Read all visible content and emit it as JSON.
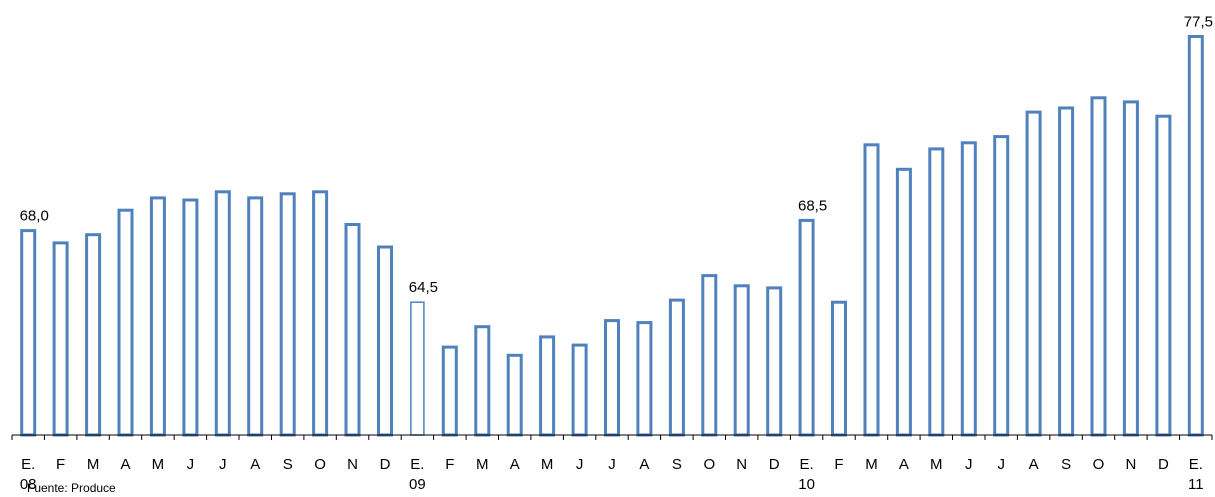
{
  "chart_data": {
    "type": "bar",
    "categories": [
      "E.",
      "F",
      "M",
      "A",
      "M",
      "J",
      "J",
      "A",
      "S",
      "O",
      "N",
      "D",
      "E.",
      "F",
      "M",
      "A",
      "M",
      "J",
      "J",
      "A",
      "S",
      "O",
      "N",
      "D",
      "E.",
      "F",
      "M",
      "A",
      "M",
      "J",
      "J",
      "A",
      "S",
      "O",
      "N",
      "D",
      "E."
    ],
    "year_labels": [
      {
        "index": 0,
        "text": "08"
      },
      {
        "index": 12,
        "text": "09"
      },
      {
        "index": 24,
        "text": "10"
      },
      {
        "index": 36,
        "text": "11"
      }
    ],
    "values": [
      68.0,
      67.4,
      67.8,
      69.0,
      69.6,
      69.5,
      69.9,
      69.6,
      69.8,
      69.9,
      68.3,
      67.2,
      64.5,
      62.3,
      63.3,
      61.9,
      62.8,
      62.4,
      63.6,
      63.5,
      64.6,
      65.8,
      65.3,
      65.2,
      68.5,
      64.5,
      72.2,
      71.0,
      72.0,
      72.3,
      72.6,
      73.8,
      74.0,
      74.5,
      74.3,
      73.6,
      77.5
    ],
    "data_labels": [
      {
        "index": 0,
        "text": "68,0"
      },
      {
        "index": 12,
        "text": "64,5"
      },
      {
        "index": 24,
        "text": "68,5"
      },
      {
        "index": 36,
        "text": "77,5"
      }
    ],
    "highlight_index": 12,
    "source": "Fuente: Produce",
    "colors": {
      "bar": "#4F81BD",
      "highlight": "#4F81BD",
      "axis": "#000000"
    }
  }
}
